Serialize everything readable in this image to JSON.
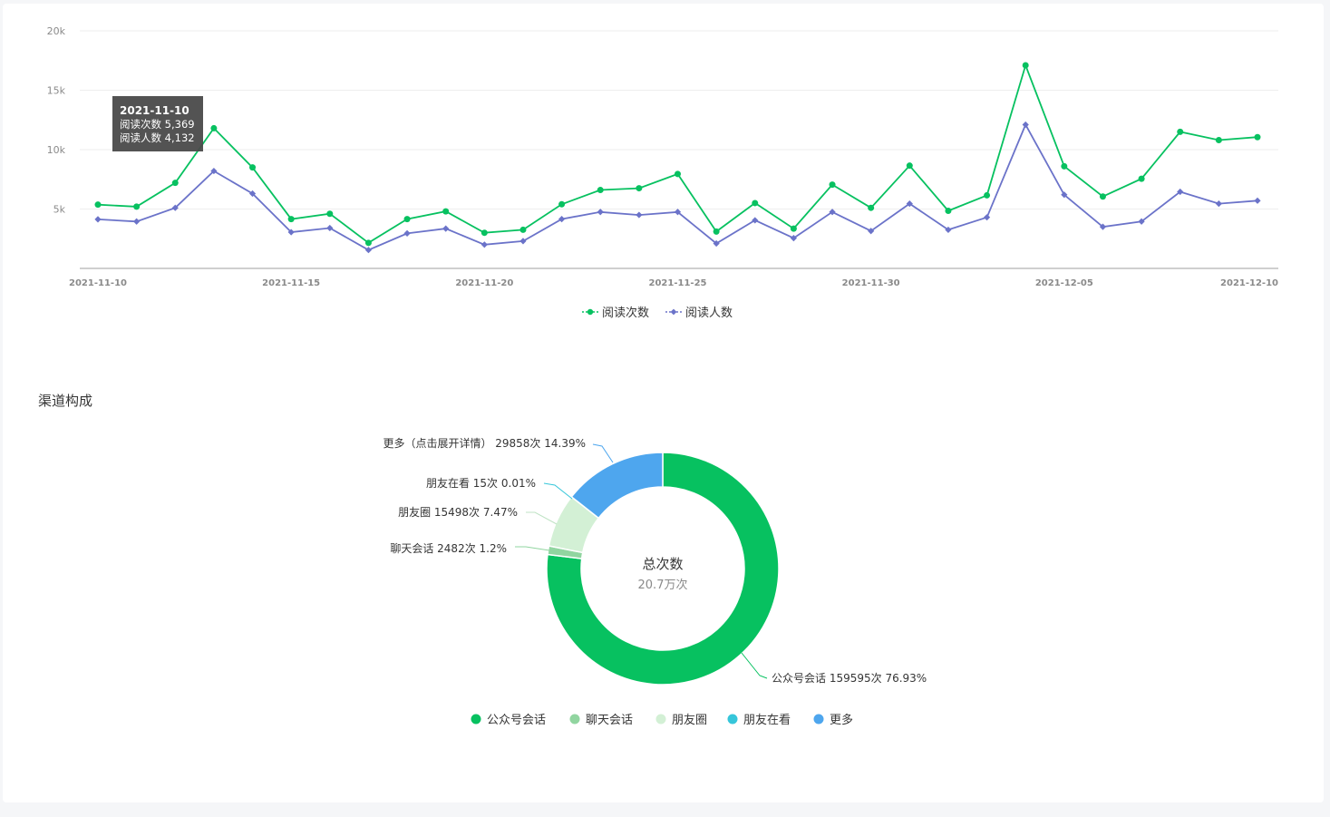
{
  "section_title": "渠道构成",
  "chart_data": [
    {
      "type": "line",
      "title": "",
      "xlabel": "",
      "ylabel": "",
      "ylim": [
        0,
        20000
      ],
      "y_ticks": [
        "5k",
        "10k",
        "15k",
        "20k"
      ],
      "y_tick_values": [
        5000,
        10000,
        15000,
        20000
      ],
      "x_tick_labels": [
        "2021-11-10",
        "2021-11-15",
        "2021-11-20",
        "2021-11-25",
        "2021-11-30",
        "2021-12-05",
        "2021-12-10"
      ],
      "x": [
        "2021-11-10",
        "2021-11-11",
        "2021-11-12",
        "2021-11-13",
        "2021-11-14",
        "2021-11-15",
        "2021-11-16",
        "2021-11-17",
        "2021-11-18",
        "2021-11-19",
        "2021-11-20",
        "2021-11-21",
        "2021-11-22",
        "2021-11-23",
        "2021-11-24",
        "2021-11-25",
        "2021-11-26",
        "2021-11-27",
        "2021-11-28",
        "2021-11-29",
        "2021-11-30",
        "2021-12-01",
        "2021-12-02",
        "2021-12-03",
        "2021-12-04",
        "2021-12-05",
        "2021-12-06",
        "2021-12-07",
        "2021-12-08",
        "2021-12-09",
        "2021-12-10"
      ],
      "series": [
        {
          "name": "阅读次数",
          "color": "#07c160",
          "marker": "circle",
          "values": [
            5369,
            5200,
            7200,
            11800,
            8500,
            4150,
            4600,
            2150,
            4150,
            4800,
            3000,
            3250,
            5400,
            6600,
            6750,
            7950,
            3100,
            5500,
            3350,
            7050,
            5100,
            8650,
            4850,
            6150,
            17100,
            8600,
            6050,
            7550,
            11500,
            10800,
            11050
          ]
        },
        {
          "name": "阅读人数",
          "color": "#6b73c9",
          "marker": "diamond",
          "values": [
            4132,
            3950,
            5100,
            8200,
            6300,
            3050,
            3400,
            1550,
            2950,
            3350,
            2000,
            2300,
            4150,
            4750,
            4500,
            4750,
            2100,
            4050,
            2550,
            4750,
            3150,
            5450,
            3250,
            4300,
            12100,
            6200,
            3500,
            3950,
            6450,
            5450,
            5700
          ]
        }
      ],
      "legend": "bottom-center",
      "grid": true,
      "tooltip": {
        "title": "2021-11-10",
        "lines": [
          "阅读次数 5,369",
          "阅读人数 4,132"
        ]
      }
    },
    {
      "type": "pie",
      "donut": true,
      "title": "",
      "center_label": "总次数",
      "center_value": "20.7万次",
      "slices": [
        {
          "name": "公众号会话",
          "value": 159595,
          "percent": 76.93,
          "color": "#07c160",
          "label": "公众号会话 159595次 76.93%"
        },
        {
          "name": "聊天会话",
          "value": 2482,
          "percent": 1.2,
          "color": "#91d5a0",
          "label": "聊天会话 2482次 1.2%"
        },
        {
          "name": "朋友圈",
          "value": 15498,
          "percent": 7.47,
          "color": "#d3f0d5",
          "label": "朋友圈 15498次 7.47%"
        },
        {
          "name": "朋友在看",
          "value": 15,
          "percent": 0.01,
          "color": "#36c6da",
          "label": "朋友在看 15次 0.01%"
        },
        {
          "name": "更多",
          "value": 29858,
          "percent": 14.39,
          "color": "#4ea6ee",
          "label": "更多（点击展开详情） 29858次 14.39%"
        }
      ],
      "legend": "bottom-center"
    }
  ]
}
